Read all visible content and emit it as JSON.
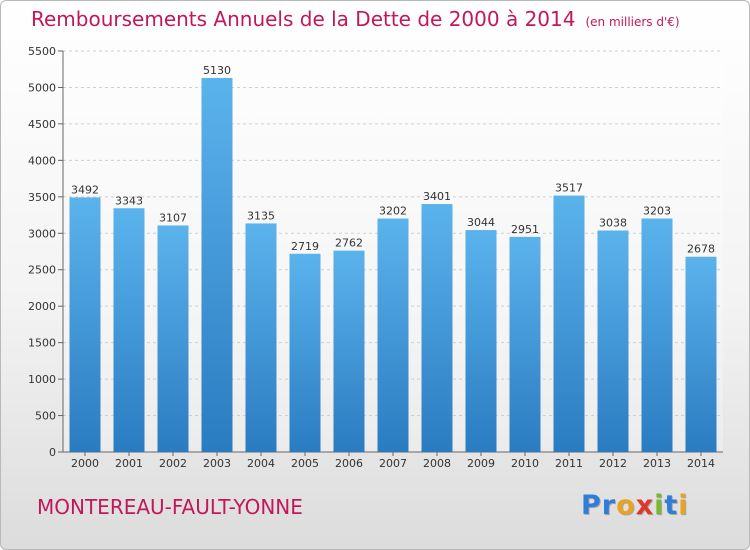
{
  "title": "Remboursements Annuels de la Dette de 2000 à 2014",
  "subtitle": "(en milliers d'€)",
  "location": "MONTEREAU-FAULT-YONNE",
  "logo": {
    "letters": [
      {
        "char": "P",
        "color": "#2e7dd7"
      },
      {
        "char": "r",
        "color": "#2e7dd7"
      },
      {
        "char": "o",
        "color": "#e8a320"
      },
      {
        "char": "x",
        "color": "#e0362b"
      },
      {
        "char": "i",
        "color": "#7cb82f"
      },
      {
        "char": "t",
        "color": "#2e7dd7"
      },
      {
        "char": "i",
        "color": "#e8a320"
      }
    ]
  },
  "colors": {
    "accent": "#c2185b",
    "bar_top": "#5bb3ec",
    "bar_bottom": "#2a7cc1",
    "grid": "#cfcfcf"
  },
  "chart_data": {
    "type": "bar",
    "categories": [
      "2000",
      "2001",
      "2002",
      "2003",
      "2004",
      "2005",
      "2006",
      "2007",
      "2008",
      "2009",
      "2010",
      "2011",
      "2012",
      "2013",
      "2014"
    ],
    "values": [
      3492,
      3343,
      3107,
      5130,
      3135,
      2719,
      2762,
      3202,
      3401,
      3044,
      2951,
      3517,
      3038,
      3203,
      2678
    ],
    "yticks": [
      0,
      500,
      1000,
      1500,
      2000,
      2500,
      3000,
      3500,
      4000,
      4500,
      5000,
      5500
    ],
    "ylim": [
      0,
      5500
    ],
    "grid": true,
    "legend": false
  }
}
